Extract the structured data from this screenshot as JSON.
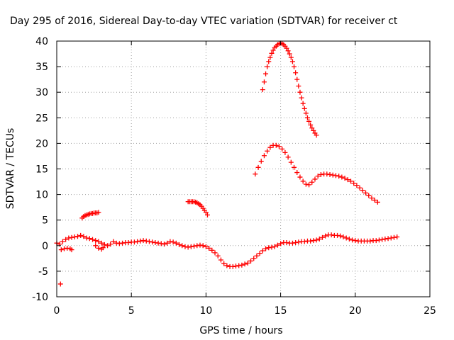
{
  "chart_data": {
    "type": "scatter",
    "title": "Day 295 of 2016, Sidereal Day-to-day VTEC variation (SDTVAR) for receiver ct",
    "xlabel": "GPS time / hours",
    "ylabel": "SDTVAR / TECUs",
    "xlim": [
      0,
      25
    ],
    "ylim": [
      -10,
      40
    ],
    "xticks": [
      0,
      5,
      10,
      15,
      20,
      25
    ],
    "yticks": [
      -10,
      -5,
      0,
      5,
      10,
      15,
      20,
      25,
      30,
      35,
      40
    ],
    "grid": true,
    "marker": "plus",
    "color": "#ff0000",
    "series": [
      {
        "x": [
          0.0,
          0.2,
          0.4,
          0.6,
          0.8,
          1.0,
          1.2,
          1.4,
          1.6,
          1.8,
          2.0,
          2.2,
          2.4,
          2.6,
          2.8,
          3.0,
          3.2,
          3.4,
          3.6,
          3.8,
          4.0,
          4.2,
          4.4,
          4.6,
          4.8,
          5.0,
          5.2,
          5.4,
          5.6,
          5.8,
          6.0,
          6.2,
          6.4,
          6.6,
          6.8,
          7.0,
          7.2,
          7.4,
          7.6,
          7.8,
          8.0,
          8.2,
          8.4,
          8.6,
          8.8,
          9.0,
          9.2,
          9.4,
          9.6,
          9.8,
          10.0,
          10.2,
          10.4,
          10.6,
          10.8,
          11.0,
          11.2,
          11.4,
          11.6,
          11.8,
          12.0,
          12.2,
          12.4,
          12.6,
          12.8,
          13.0,
          13.2,
          13.4,
          13.6,
          13.8,
          14.0,
          14.2,
          14.4,
          14.6,
          14.8,
          15.0,
          15.2,
          15.4,
          15.6,
          15.8,
          16.0,
          16.2,
          16.4,
          16.6,
          16.8,
          17.0,
          17.2,
          17.4,
          17.6,
          17.8,
          18.0,
          18.2,
          18.4,
          18.6,
          18.8,
          19.0,
          19.2,
          19.4,
          19.6,
          19.8,
          20.0,
          20.2,
          20.4,
          20.6,
          20.8,
          21.0,
          21.2,
          21.4,
          21.6,
          21.8,
          22.0,
          22.2,
          22.4,
          22.6,
          22.8
        ],
        "y": [
          0.5,
          0.3,
          0.8,
          1.2,
          1.5,
          1.6,
          1.7,
          1.8,
          2.0,
          1.8,
          1.5,
          1.4,
          1.2,
          1.0,
          0.8,
          0.5,
          0.2,
          0.0,
          0.3,
          0.8,
          0.5,
          0.4,
          0.5,
          0.6,
          0.6,
          0.7,
          0.7,
          0.8,
          0.9,
          1.0,
          0.9,
          0.8,
          0.7,
          0.6,
          0.5,
          0.4,
          0.3,
          0.5,
          0.8,
          0.7,
          0.5,
          0.2,
          0.0,
          -0.2,
          -0.3,
          -0.2,
          -0.1,
          0.0,
          0.1,
          0.0,
          -0.2,
          -0.5,
          -0.9,
          -1.4,
          -2.0,
          -2.8,
          -3.5,
          -3.9,
          -4.1,
          -4.1,
          -4.0,
          -3.9,
          -3.8,
          -3.6,
          -3.4,
          -3.0,
          -2.5,
          -2.0,
          -1.5,
          -1.0,
          -0.6,
          -0.4,
          -0.3,
          -0.2,
          0.1,
          0.4,
          0.6,
          0.6,
          0.5,
          0.5,
          0.6,
          0.7,
          0.8,
          0.8,
          0.9,
          0.9,
          1.0,
          1.1,
          1.3,
          1.6,
          1.9,
          2.1,
          2.1,
          2.0,
          2.0,
          1.9,
          1.7,
          1.5,
          1.3,
          1.1,
          1.0,
          0.9,
          0.9,
          0.9,
          0.9,
          0.9,
          1.0,
          1.0,
          1.1,
          1.2,
          1.3,
          1.4,
          1.5,
          1.6,
          1.7
        ]
      },
      {
        "x": [
          0.3,
          0.5,
          0.7,
          0.9,
          1.0,
          2.6,
          2.8,
          3.0,
          3.1
        ],
        "y": [
          -0.8,
          -0.6,
          -0.5,
          -0.6,
          -0.8,
          0.0,
          -0.5,
          -0.7,
          -0.4
        ]
      },
      {
        "x": [
          0.25
        ],
        "y": [
          -7.5
        ]
      },
      {
        "x": [
          1.7,
          1.8,
          1.9,
          2.0,
          2.1,
          2.2,
          2.3,
          2.4,
          2.5,
          2.6,
          2.7,
          2.8
        ],
        "y": [
          5.4,
          5.7,
          5.9,
          6.0,
          6.1,
          6.2,
          6.3,
          6.3,
          6.4,
          6.4,
          6.4,
          6.5
        ]
      },
      {
        "x": [
          8.8,
          8.9,
          9.0,
          9.1,
          9.2,
          9.3,
          9.4,
          9.5,
          9.6,
          9.7,
          9.8,
          9.9,
          10.0,
          10.1
        ],
        "y": [
          8.6,
          8.6,
          8.6,
          8.6,
          8.6,
          8.5,
          8.4,
          8.2,
          8.0,
          7.7,
          7.3,
          6.9,
          6.5,
          6.0
        ]
      },
      {
        "x": [
          13.3,
          13.5,
          13.7,
          13.9,
          14.1,
          14.3,
          14.5,
          14.7,
          14.9,
          15.1,
          15.3,
          15.5,
          15.7,
          15.9,
          16.1,
          16.3,
          16.5,
          16.7,
          16.9,
          17.1,
          17.3,
          17.5,
          17.7,
          17.9,
          18.1,
          18.3,
          18.5,
          18.7,
          18.9,
          19.1,
          19.3,
          19.5,
          19.7,
          19.9,
          20.1,
          20.3,
          20.5,
          20.7,
          20.9,
          21.1,
          21.3,
          21.5
        ],
        "y": [
          14.0,
          15.3,
          16.5,
          17.6,
          18.5,
          19.2,
          19.6,
          19.6,
          19.4,
          18.9,
          18.2,
          17.3,
          16.3,
          15.3,
          14.3,
          13.4,
          12.6,
          12.0,
          11.9,
          12.4,
          13.0,
          13.6,
          13.9,
          14.0,
          14.0,
          13.9,
          13.8,
          13.7,
          13.6,
          13.4,
          13.2,
          12.9,
          12.6,
          12.2,
          11.8,
          11.3,
          10.8,
          10.3,
          9.8,
          9.3,
          8.9,
          8.5
        ]
      },
      {
        "x": [
          13.8,
          13.9,
          14.0,
          14.1,
          14.2,
          14.3,
          14.4,
          14.5,
          14.6,
          14.7,
          14.8,
          14.9,
          15.0,
          15.1,
          15.2,
          15.3,
          15.4,
          15.5,
          15.6,
          15.7,
          15.8,
          15.9,
          16.0,
          16.1,
          16.2,
          16.3,
          16.4,
          16.5,
          16.6,
          16.7,
          16.8,
          16.9,
          17.0,
          17.1,
          17.2,
          17.3,
          17.4
        ],
        "y": [
          30.5,
          32.0,
          33.6,
          35.0,
          36.0,
          36.8,
          37.6,
          38.2,
          38.7,
          39.0,
          39.3,
          39.5,
          39.6,
          39.5,
          39.3,
          39.0,
          38.6,
          38.1,
          37.5,
          36.8,
          36.0,
          35.0,
          33.8,
          32.5,
          31.2,
          30.0,
          28.9,
          27.8,
          26.8,
          25.9,
          25.0,
          24.3,
          23.6,
          23.0,
          22.5,
          22.0,
          21.6
        ]
      }
    ]
  }
}
